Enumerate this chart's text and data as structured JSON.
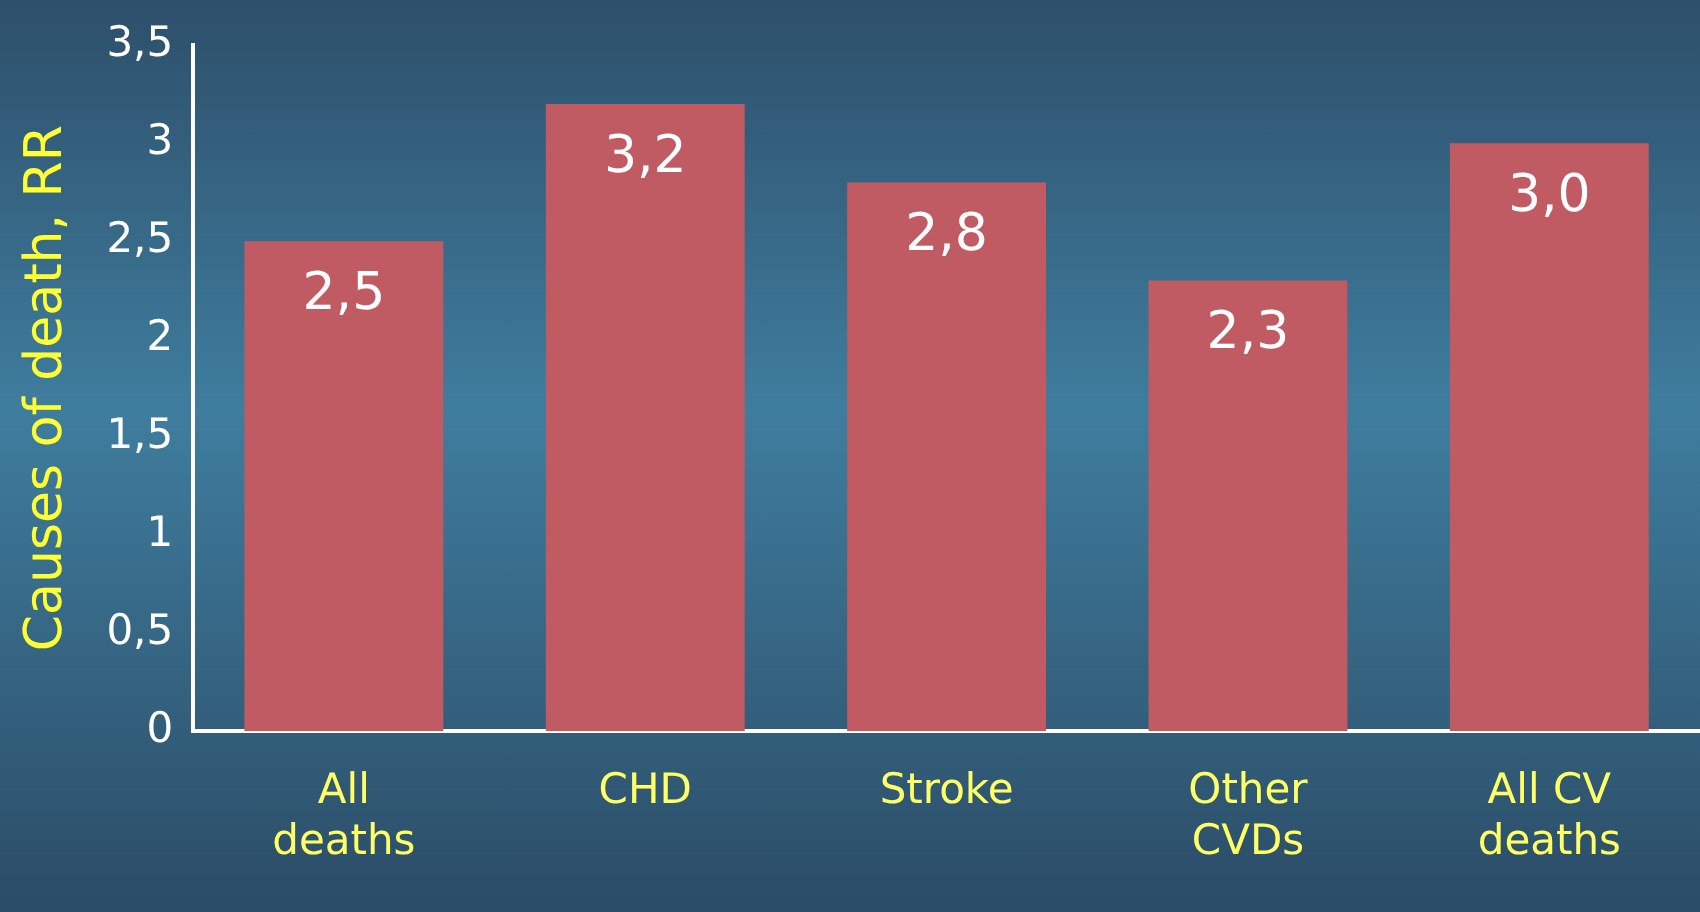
{
  "chart_data": {
    "type": "bar",
    "ylabel": "Causes of death, RR",
    "categories": [
      "All deaths",
      "CHD",
      "Stroke",
      "Other CVDs",
      "All CV deaths"
    ],
    "values": [
      2.5,
      3.2,
      2.8,
      2.3,
      3.0
    ],
    "value_labels": [
      "2,5",
      "3,2",
      "2,8",
      "2,3",
      "3,0"
    ],
    "color": "#c05a63",
    "ylim": [
      0,
      3.5
    ],
    "yticks": [
      0,
      {
        "value": 0.5,
        "label": "0,5"
      },
      1,
      {
        "value": 1.5,
        "label": "1,5"
      },
      2,
      {
        "value": 2.5,
        "label": "2,5"
      },
      3,
      {
        "value": 3.5,
        "label": "3,5"
      }
    ],
    "grid": false,
    "legend": false
  }
}
